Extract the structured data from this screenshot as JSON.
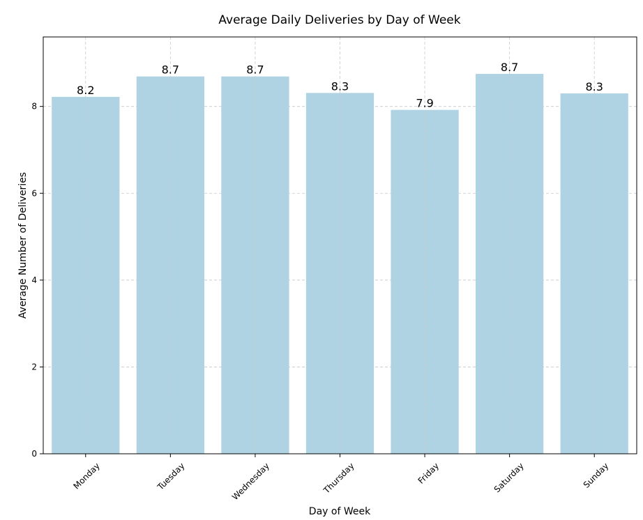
{
  "chart_data": {
    "type": "bar",
    "title": "Average Daily Deliveries by Day of Week",
    "xlabel": "Day of Week",
    "ylabel": "Average Number of Deliveries",
    "categories": [
      "Monday",
      "Tuesday",
      "Wednesday",
      "Thursday",
      "Friday",
      "Saturday",
      "Sunday"
    ],
    "values": [
      8.22,
      8.69,
      8.69,
      8.31,
      7.92,
      8.75,
      8.3
    ],
    "value_labels": [
      "8.2",
      "8.7",
      "8.7",
      "8.3",
      "7.9",
      "8.7",
      "8.3"
    ],
    "ylim": [
      0,
      9.6
    ],
    "yticks": [
      0,
      2,
      4,
      6,
      8
    ],
    "ytick_labels": [
      "0",
      "2",
      "4",
      "6",
      "8"
    ],
    "grid": true,
    "bar_color": "#b0d3e4",
    "grid_color": "#c8c8c8"
  }
}
